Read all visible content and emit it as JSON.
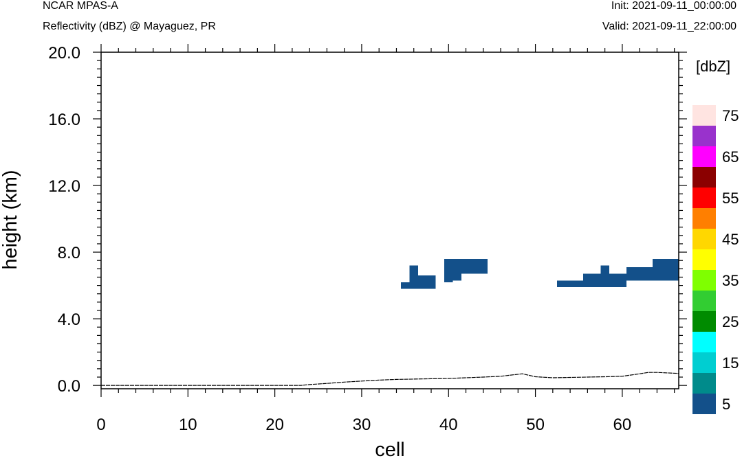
{
  "header": {
    "model": "NCAR MPAS-A",
    "subtitle": "Reflectivity (dBZ) @ Mayaguez, PR",
    "init": "Init: 2021-09-11_00:00:00",
    "valid": "Valid: 2021-09-11_22:00:00"
  },
  "chart_data": {
    "type": "heatmap",
    "xlabel": "cell",
    "ylabel": "height (km)",
    "xlim": [
      0,
      66.5
    ],
    "ylim": [
      -0.2,
      20.0
    ],
    "x_ticks": [
      0,
      10,
      20,
      30,
      40,
      50,
      60
    ],
    "x_tick_labels": [
      "0",
      "10",
      "20",
      "30",
      "40",
      "50",
      "60"
    ],
    "y_ticks": [
      0,
      4,
      8,
      12,
      16,
      20
    ],
    "y_tick_labels": [
      "0.0",
      "4.0",
      "8.0",
      "12.0",
      "16.0",
      "20.0"
    ],
    "colorbar": {
      "title": "[dbZ]",
      "levels": [
        5,
        10,
        15,
        20,
        25,
        30,
        35,
        40,
        45,
        50,
        55,
        60,
        65,
        70,
        75
      ],
      "labels": [
        "5",
        "15",
        "25",
        "35",
        "45",
        "55",
        "65",
        "75"
      ],
      "colors": [
        "#13508A",
        "#008B8B",
        "#00CED1",
        "#00FFFF",
        "#008B00",
        "#32CD32",
        "#7FFF00",
        "#FFFF00",
        "#FFD700",
        "#FF7F00",
        "#FF0000",
        "#8B0000",
        "#FF00FF",
        "#9932CC",
        "#FFE4E1"
      ]
    },
    "echo_cells": [
      {
        "x0": 34.5,
        "x1": 35.5,
        "y0": 5.8,
        "y1": 6.2,
        "dbz": 5
      },
      {
        "x0": 35.5,
        "x1": 36.5,
        "y0": 5.8,
        "y1": 7.2,
        "dbz": 5
      },
      {
        "x0": 36.5,
        "x1": 38.5,
        "y0": 5.8,
        "y1": 6.6,
        "dbz": 5
      },
      {
        "x0": 39.5,
        "x1": 40.5,
        "y0": 6.2,
        "y1": 7.6,
        "dbz": 5
      },
      {
        "x0": 40.5,
        "x1": 41.5,
        "y0": 6.3,
        "y1": 7.6,
        "dbz": 5
      },
      {
        "x0": 41.5,
        "x1": 44.5,
        "y0": 6.7,
        "y1": 7.6,
        "dbz": 5
      },
      {
        "x0": 52.5,
        "x1": 55.5,
        "y0": 5.9,
        "y1": 6.3,
        "dbz": 5
      },
      {
        "x0": 55.5,
        "x1": 57.5,
        "y0": 5.9,
        "y1": 6.7,
        "dbz": 5
      },
      {
        "x0": 57.5,
        "x1": 58.5,
        "y0": 5.9,
        "y1": 7.2,
        "dbz": 5
      },
      {
        "x0": 58.5,
        "x1": 60.5,
        "y0": 5.9,
        "y1": 6.7,
        "dbz": 5
      },
      {
        "x0": 60.5,
        "x1": 63.5,
        "y0": 6.3,
        "y1": 7.1,
        "dbz": 5
      },
      {
        "x0": 63.5,
        "x1": 66.5,
        "y0": 6.3,
        "y1": 7.6,
        "dbz": 5
      }
    ],
    "terrain": {
      "x": [
        0,
        23,
        24,
        26,
        28,
        30,
        32,
        34,
        36,
        38,
        40,
        42,
        44,
        46,
        48.5,
        50,
        52,
        54,
        56,
        58,
        60,
        62,
        63,
        64,
        66.5
      ],
      "y": [
        0.0,
        0.0,
        0.05,
        0.12,
        0.2,
        0.26,
        0.32,
        0.36,
        0.38,
        0.4,
        0.42,
        0.46,
        0.5,
        0.55,
        0.7,
        0.52,
        0.46,
        0.48,
        0.5,
        0.52,
        0.55,
        0.7,
        0.78,
        0.78,
        0.72
      ]
    }
  }
}
